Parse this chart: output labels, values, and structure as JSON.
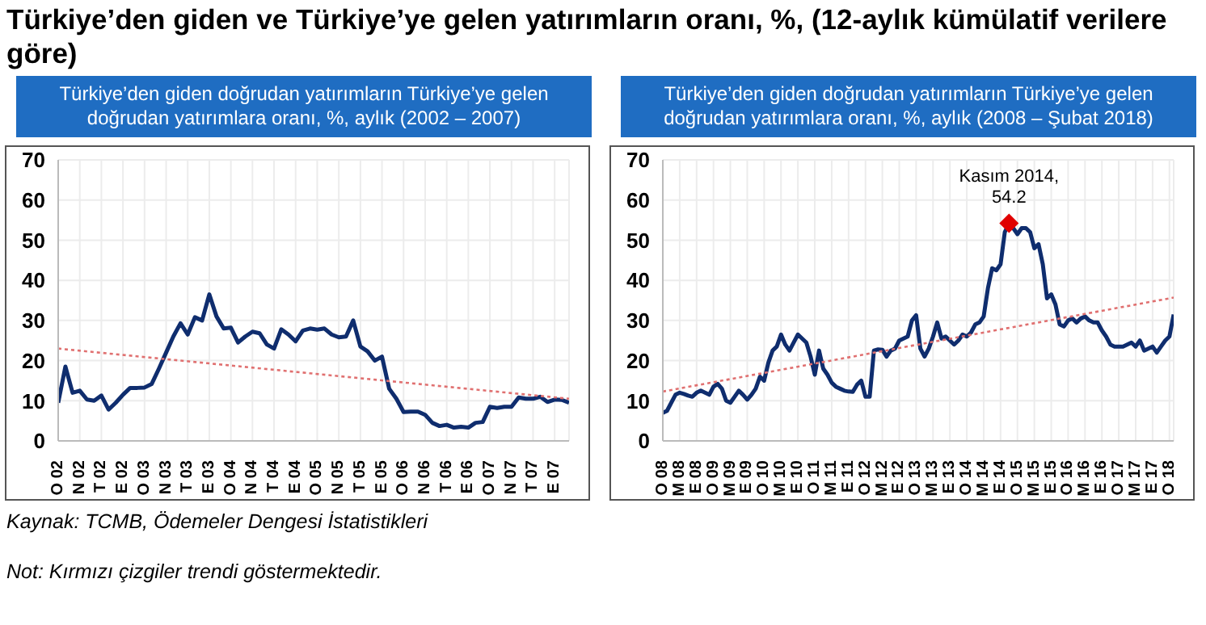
{
  "chart_data": [
    {
      "type": "line",
      "title": "Türkiye’den giden ve Türkiye’ye gelen yatırımların oranı, %, (12-aylık kümülatif verilere göre)",
      "subtitle": "Türkiye’den giden doğrudan yatırımların Türkiye’ye gelen doğrudan yatırımlara oranı, %, aylık (2002 – 2007)",
      "annotations": [
        "Kaynak: TCMB, Ödemeler Dengesi İstatistikleri",
        "Not: Kırmızı çizgiler trendi göstermektedir."
      ],
      "categories": [
        "O 02",
        null,
        null,
        "N 02",
        null,
        null,
        "T 02",
        null,
        null,
        "E 02",
        null,
        null,
        "O 03",
        null,
        null,
        "N 03",
        null,
        null,
        "T 03",
        null,
        null,
        "E 03",
        null,
        null,
        "O 04",
        null,
        null,
        "N 04",
        null,
        null,
        "T 04",
        null,
        null,
        "E 04",
        null,
        null,
        "O 05",
        null,
        null,
        "N 05",
        null,
        null,
        "T 05",
        null,
        null,
        "E 05",
        null,
        null,
        "O 06",
        null,
        null,
        "N 06",
        null,
        null,
        "T 06",
        null,
        null,
        "E 06",
        null,
        null,
        "O 07",
        null,
        null,
        "N 07",
        null,
        null,
        "T 07",
        null,
        null,
        "E 07",
        null,
        null
      ],
      "ylim": [
        0,
        70
      ],
      "yticks": [
        0,
        10,
        20,
        30,
        40,
        50,
        60,
        70
      ],
      "grid": true,
      "marker": "none",
      "series": [
        {
          "color": "#0f2d6e",
          "values": [
            9.5,
            18.5,
            12,
            12.5,
            10.3,
            10,
            11.3,
            7.8,
            9.5,
            11.5,
            13.2,
            13.2,
            13.3,
            14.2,
            18,
            22,
            26,
            29.3,
            26.5,
            30.8,
            30,
            36.5,
            31,
            28,
            28.2,
            24.5,
            26,
            27.2,
            26.8,
            24,
            23,
            27.8,
            26.5,
            24.8,
            27.5,
            28,
            27.7,
            28,
            26.5,
            25.8,
            26,
            30,
            23.5,
            22.3,
            20,
            21,
            13,
            10.5,
            7.2,
            7.3,
            7.3,
            6.5,
            4.5,
            3.7,
            4,
            3.3,
            3.5,
            3.3,
            4.5,
            4.7,
            8.5,
            8.2,
            8.5,
            8.5,
            10.8,
            10.5,
            10.5,
            11,
            9.7,
            10.3,
            10.2,
            9.5
          ]
        },
        {
          "color": "#e07070",
          "line_style": "dotted",
          "values": [
            23,
            null,
            null,
            null,
            null,
            null,
            null,
            null,
            null,
            null,
            null,
            null,
            null,
            null,
            null,
            null,
            null,
            null,
            null,
            null,
            null,
            null,
            null,
            null,
            null,
            null,
            null,
            null,
            null,
            null,
            null,
            null,
            null,
            null,
            null,
            null,
            null,
            null,
            null,
            null,
            null,
            null,
            null,
            null,
            null,
            null,
            null,
            null,
            null,
            null,
            null,
            null,
            null,
            null,
            null,
            null,
            null,
            null,
            null,
            null,
            null,
            null,
            null,
            null,
            null,
            null,
            null,
            null,
            null,
            null,
            null,
            10.5
          ]
        }
      ]
    },
    {
      "type": "line",
      "title": "Türkiye’den giden doğrudan yatırımların Türkiye’ye gelen doğrudan yatırımlara oranı, %, aylık (2008 – Şubat 2018)",
      "annotations": [
        {
          "text": "Kasım 2014, 54.2",
          "y": 54.2
        }
      ],
      "categories": [
        "O 08",
        null,
        null,
        null,
        "M 08",
        null,
        null,
        null,
        "E 08",
        null,
        null,
        null,
        "O 09",
        null,
        null,
        null,
        "M 09",
        null,
        null,
        null,
        "E 09",
        null,
        null,
        null,
        "O 10",
        null,
        null,
        null,
        "M 10",
        null,
        null,
        null,
        "E 10",
        null,
        null,
        null,
        "O 11",
        null,
        null,
        null,
        "M 11",
        null,
        null,
        null,
        "E 11",
        null,
        null,
        null,
        "O 12",
        null,
        null,
        null,
        "M 12",
        null,
        null,
        null,
        "E 12",
        null,
        null,
        null,
        "O 13",
        null,
        null,
        null,
        "M 13",
        null,
        null,
        null,
        "E 13",
        null,
        null,
        null,
        "O 14",
        null,
        null,
        null,
        "M 14",
        null,
        null,
        null,
        "E 14",
        null,
        null,
        null,
        "O 15",
        null,
        null,
        null,
        "M 15",
        null,
        null,
        null,
        "E 15",
        null,
        null,
        null,
        "O 16",
        null,
        null,
        null,
        "M 16",
        null,
        null,
        null,
        "E 16",
        null,
        null,
        null,
        "O 17",
        null,
        null,
        null,
        "M 17",
        null,
        null,
        null,
        "E 17",
        null,
        null,
        null,
        "O 18",
        null
      ],
      "ylim": [
        0,
        70
      ],
      "yticks": [
        0,
        10,
        20,
        30,
        40,
        50,
        60,
        70
      ],
      "grid": true,
      "marker": "none",
      "series": [
        {
          "color": "#0f2d6e",
          "values": [
            7,
            7.5,
            9.5,
            11.5,
            12,
            11.7,
            11.3,
            11,
            12,
            12.5,
            12,
            11.5,
            13.5,
            14.2,
            13,
            10,
            9.5,
            11,
            12.5,
            11.5,
            10.3,
            11.5,
            13,
            16,
            15,
            19.5,
            22.5,
            23.5,
            26.5,
            24,
            22.5,
            24.5,
            26.5,
            25.5,
            24.5,
            21,
            16.5,
            22.5,
            18,
            16.5,
            14.5,
            13.5,
            13,
            12.5,
            12.3,
            12.2,
            14,
            15,
            11,
            11,
            22.5,
            22.8,
            22.7,
            21,
            22.5,
            23,
            25,
            25.5,
            26,
            30,
            31.3,
            23,
            21,
            23,
            26,
            29.5,
            25.5,
            26,
            25,
            24,
            25,
            26.5,
            26,
            27,
            29,
            29.5,
            31,
            38,
            43,
            42.5,
            44,
            52,
            54.2,
            53,
            51.5,
            53,
            53,
            52,
            48,
            49,
            44,
            35.5,
            36.5,
            34,
            29,
            28.5,
            30,
            30.5,
            29.5,
            30.5,
            31,
            30,
            29.5,
            29.5,
            27.5,
            26,
            24,
            23.5,
            23.5,
            23.5,
            24,
            24.5,
            23.5,
            25,
            22.5,
            23,
            23.5,
            22,
            23.5,
            25,
            26,
            31.5
          ]
        },
        {
          "color": "#e07070",
          "line_style": "dotted",
          "values": [
            12.3,
            null,
            null,
            null,
            null,
            null,
            null,
            null,
            null,
            null,
            null,
            null,
            null,
            null,
            null,
            null,
            null,
            null,
            null,
            null,
            null,
            null,
            null,
            null,
            null,
            null,
            null,
            null,
            null,
            null,
            null,
            null,
            null,
            null,
            null,
            null,
            null,
            null,
            null,
            null,
            null,
            null,
            null,
            null,
            null,
            null,
            null,
            null,
            null,
            null,
            null,
            null,
            null,
            null,
            null,
            null,
            null,
            null,
            null,
            null,
            null,
            null,
            null,
            null,
            null,
            null,
            null,
            null,
            null,
            null,
            null,
            null,
            null,
            null,
            null,
            null,
            null,
            null,
            null,
            null,
            null,
            null,
            null,
            null,
            null,
            null,
            null,
            null,
            null,
            null,
            null,
            null,
            null,
            null,
            null,
            null,
            null,
            null,
            null,
            null,
            null,
            null,
            null,
            null,
            null,
            null,
            null,
            null,
            null,
            null,
            null,
            null,
            null,
            null,
            null,
            null,
            null,
            null,
            null,
            null,
            null,
            35.7
          ]
        },
        {
          "type": "scatter",
          "color": "#e00000",
          "marker": "diamond",
          "values": [
            null,
            null,
            null,
            null,
            null,
            null,
            null,
            null,
            null,
            null,
            null,
            null,
            null,
            null,
            null,
            null,
            null,
            null,
            null,
            null,
            null,
            null,
            null,
            null,
            null,
            null,
            null,
            null,
            null,
            null,
            null,
            null,
            null,
            null,
            null,
            null,
            null,
            null,
            null,
            null,
            null,
            null,
            null,
            null,
            null,
            null,
            null,
            null,
            null,
            null,
            null,
            null,
            null,
            null,
            null,
            null,
            null,
            null,
            null,
            null,
            null,
            null,
            null,
            null,
            null,
            null,
            null,
            null,
            null,
            null,
            null,
            null,
            null,
            null,
            null,
            null,
            null,
            null,
            null,
            null,
            null,
            null,
            54.2,
            null,
            null,
            null,
            null,
            null,
            null,
            null,
            null,
            null,
            null,
            null,
            null,
            null,
            null,
            null,
            null,
            null,
            null,
            null,
            null,
            null,
            null,
            null,
            null,
            null,
            null,
            null,
            null,
            null,
            null,
            null,
            null,
            null,
            null,
            null,
            null,
            null,
            null,
            null
          ]
        }
      ]
    }
  ]
}
